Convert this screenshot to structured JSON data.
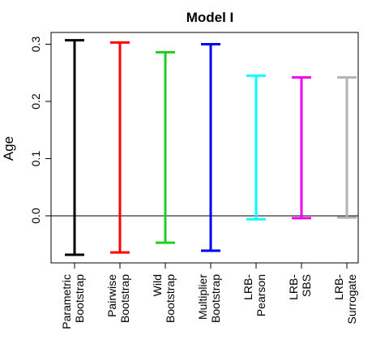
{
  "chart_data": {
    "type": "errorbar",
    "title": "Model I",
    "xlabel": "",
    "ylabel": "Age",
    "ylim": [
      -0.08,
      0.32
    ],
    "yticks": [
      0.0,
      0.1,
      0.2,
      0.3
    ],
    "ytick_labels": [
      "0.0",
      "0.1",
      "0.2",
      "0.3"
    ],
    "reference_line": 0,
    "grid": false,
    "legend": "none",
    "categories": [
      [
        "Parametric",
        "Bootstrap"
      ],
      [
        "Pairwise",
        "Bootstrap"
      ],
      [
        "Wild",
        "Bootstrap"
      ],
      [
        "Multiplier",
        "Bootstrap"
      ],
      [
        "LRB-",
        "Pearson"
      ],
      [
        "LRB-",
        "SBS"
      ],
      [
        "LRB-",
        "Surrogate"
      ]
    ],
    "intervals": [
      {
        "lower": -0.068,
        "upper": 0.307,
        "color": "#000000"
      },
      {
        "lower": -0.064,
        "upper": 0.303,
        "color": "#ff0000"
      },
      {
        "lower": -0.047,
        "upper": 0.286,
        "color": "#22cc22"
      },
      {
        "lower": -0.061,
        "upper": 0.3,
        "color": "#0000ee"
      },
      {
        "lower": -0.006,
        "upper": 0.245,
        "color": "#00ffff"
      },
      {
        "lower": -0.004,
        "upper": 0.242,
        "color": "#ee00ee"
      },
      {
        "lower": -0.003,
        "upper": 0.242,
        "color": "#b3b3b3"
      }
    ]
  }
}
